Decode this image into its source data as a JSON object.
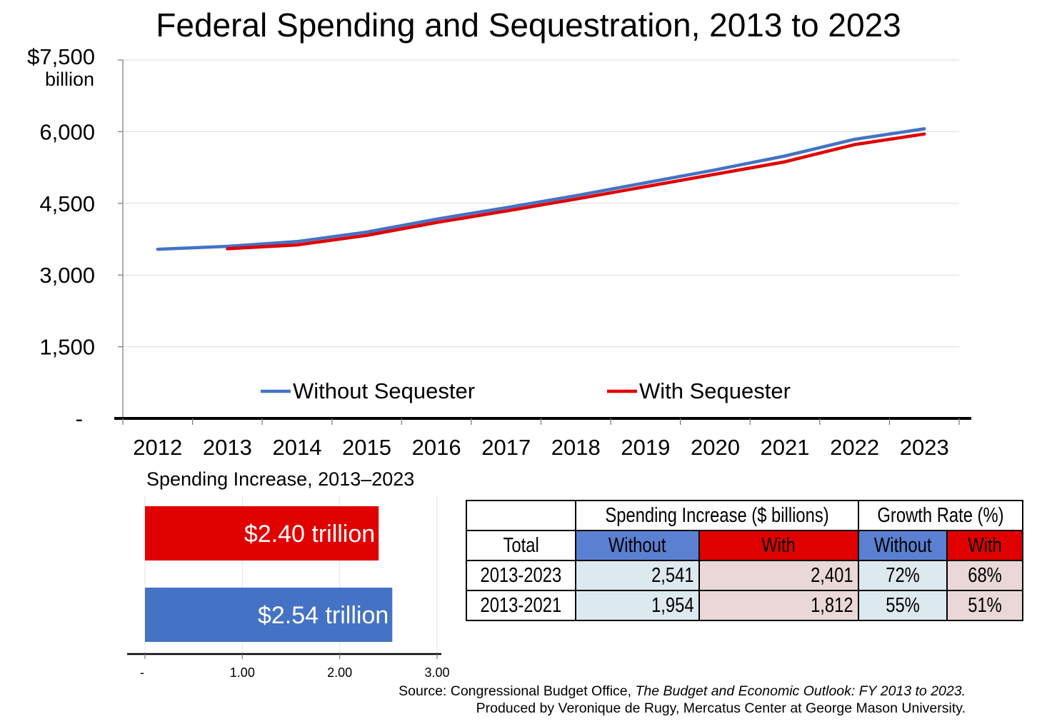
{
  "title": "Federal Spending and Sequestration, 2013 to 2023",
  "chart_data": [
    {
      "type": "line",
      "title": "Federal Spending and Sequestration, 2013 to 2023",
      "y_unit_label": "billion",
      "x": [
        2012,
        2013,
        2014,
        2015,
        2016,
        2017,
        2018,
        2019,
        2020,
        2021,
        2022,
        2023
      ],
      "x_tick_labels": [
        "2012",
        "2013",
        "2014",
        "2015",
        "2016",
        "2017",
        "2018",
        "2019",
        "2020",
        "2021",
        "2022",
        "2023"
      ],
      "ylim": [
        0,
        7500
      ],
      "y_ticks": [
        0,
        1500,
        3000,
        4500,
        6000,
        7500
      ],
      "y_tick_labels": [
        "-",
        "1,500",
        "3,000",
        "4,500",
        "6,000",
        "$7,500"
      ],
      "grid": "horizontal",
      "legend_position": "bottom-center",
      "series": [
        {
          "name": "Without Sequester",
          "color": "#4472c4",
          "x": [
            2012,
            2013,
            2014,
            2015,
            2016,
            2017,
            2018,
            2019,
            2020,
            2021,
            2022,
            2023
          ],
          "values": [
            3540,
            3600,
            3700,
            3900,
            4170,
            4410,
            4660,
            4930,
            5200,
            5490,
            5840,
            6060
          ]
        },
        {
          "name": "With Sequester",
          "color": "#e00000",
          "x": [
            2013,
            2014,
            2015,
            2016,
            2017,
            2018,
            2019,
            2020,
            2021,
            2022,
            2023
          ],
          "values": [
            3550,
            3630,
            3830,
            4100,
            4340,
            4590,
            4850,
            5110,
            5370,
            5730,
            5950
          ]
        }
      ]
    },
    {
      "type": "bar",
      "orientation": "horizontal",
      "title": "Spending Increase, 2013–2023",
      "xlim": [
        0,
        3
      ],
      "x_ticks": [
        0,
        1,
        2,
        3
      ],
      "x_tick_labels": [
        "-",
        "1.00",
        "2.00",
        "3.00"
      ],
      "bars": [
        {
          "label": "$2.40 trillion",
          "value": 2.4,
          "color": "#e00000"
        },
        {
          "label": "$2.54 trillion",
          "value": 2.54,
          "color": "#4472c4"
        }
      ]
    }
  ],
  "table": {
    "group_headers": [
      "Spending Increase ($ billions)",
      "Growth Rate (%)"
    ],
    "row_header_label": "Total",
    "sub_headers": [
      "Without",
      "With",
      "Without",
      "With"
    ],
    "rows": [
      {
        "period": "2013-2023",
        "cells": [
          "2,541",
          "2,401",
          "72%",
          "68%"
        ]
      },
      {
        "period": "2013-2021",
        "cells": [
          "1,954",
          "1,812",
          "55%",
          "51%"
        ]
      }
    ]
  },
  "source": {
    "prefix": "Source: Congressional Budget Office, ",
    "publication": "The Budget and Economic Outlook: FY 2013 to 2023.",
    "producer": "Produced by Veronique de Rugy, Mercatus Center at George Mason University."
  }
}
